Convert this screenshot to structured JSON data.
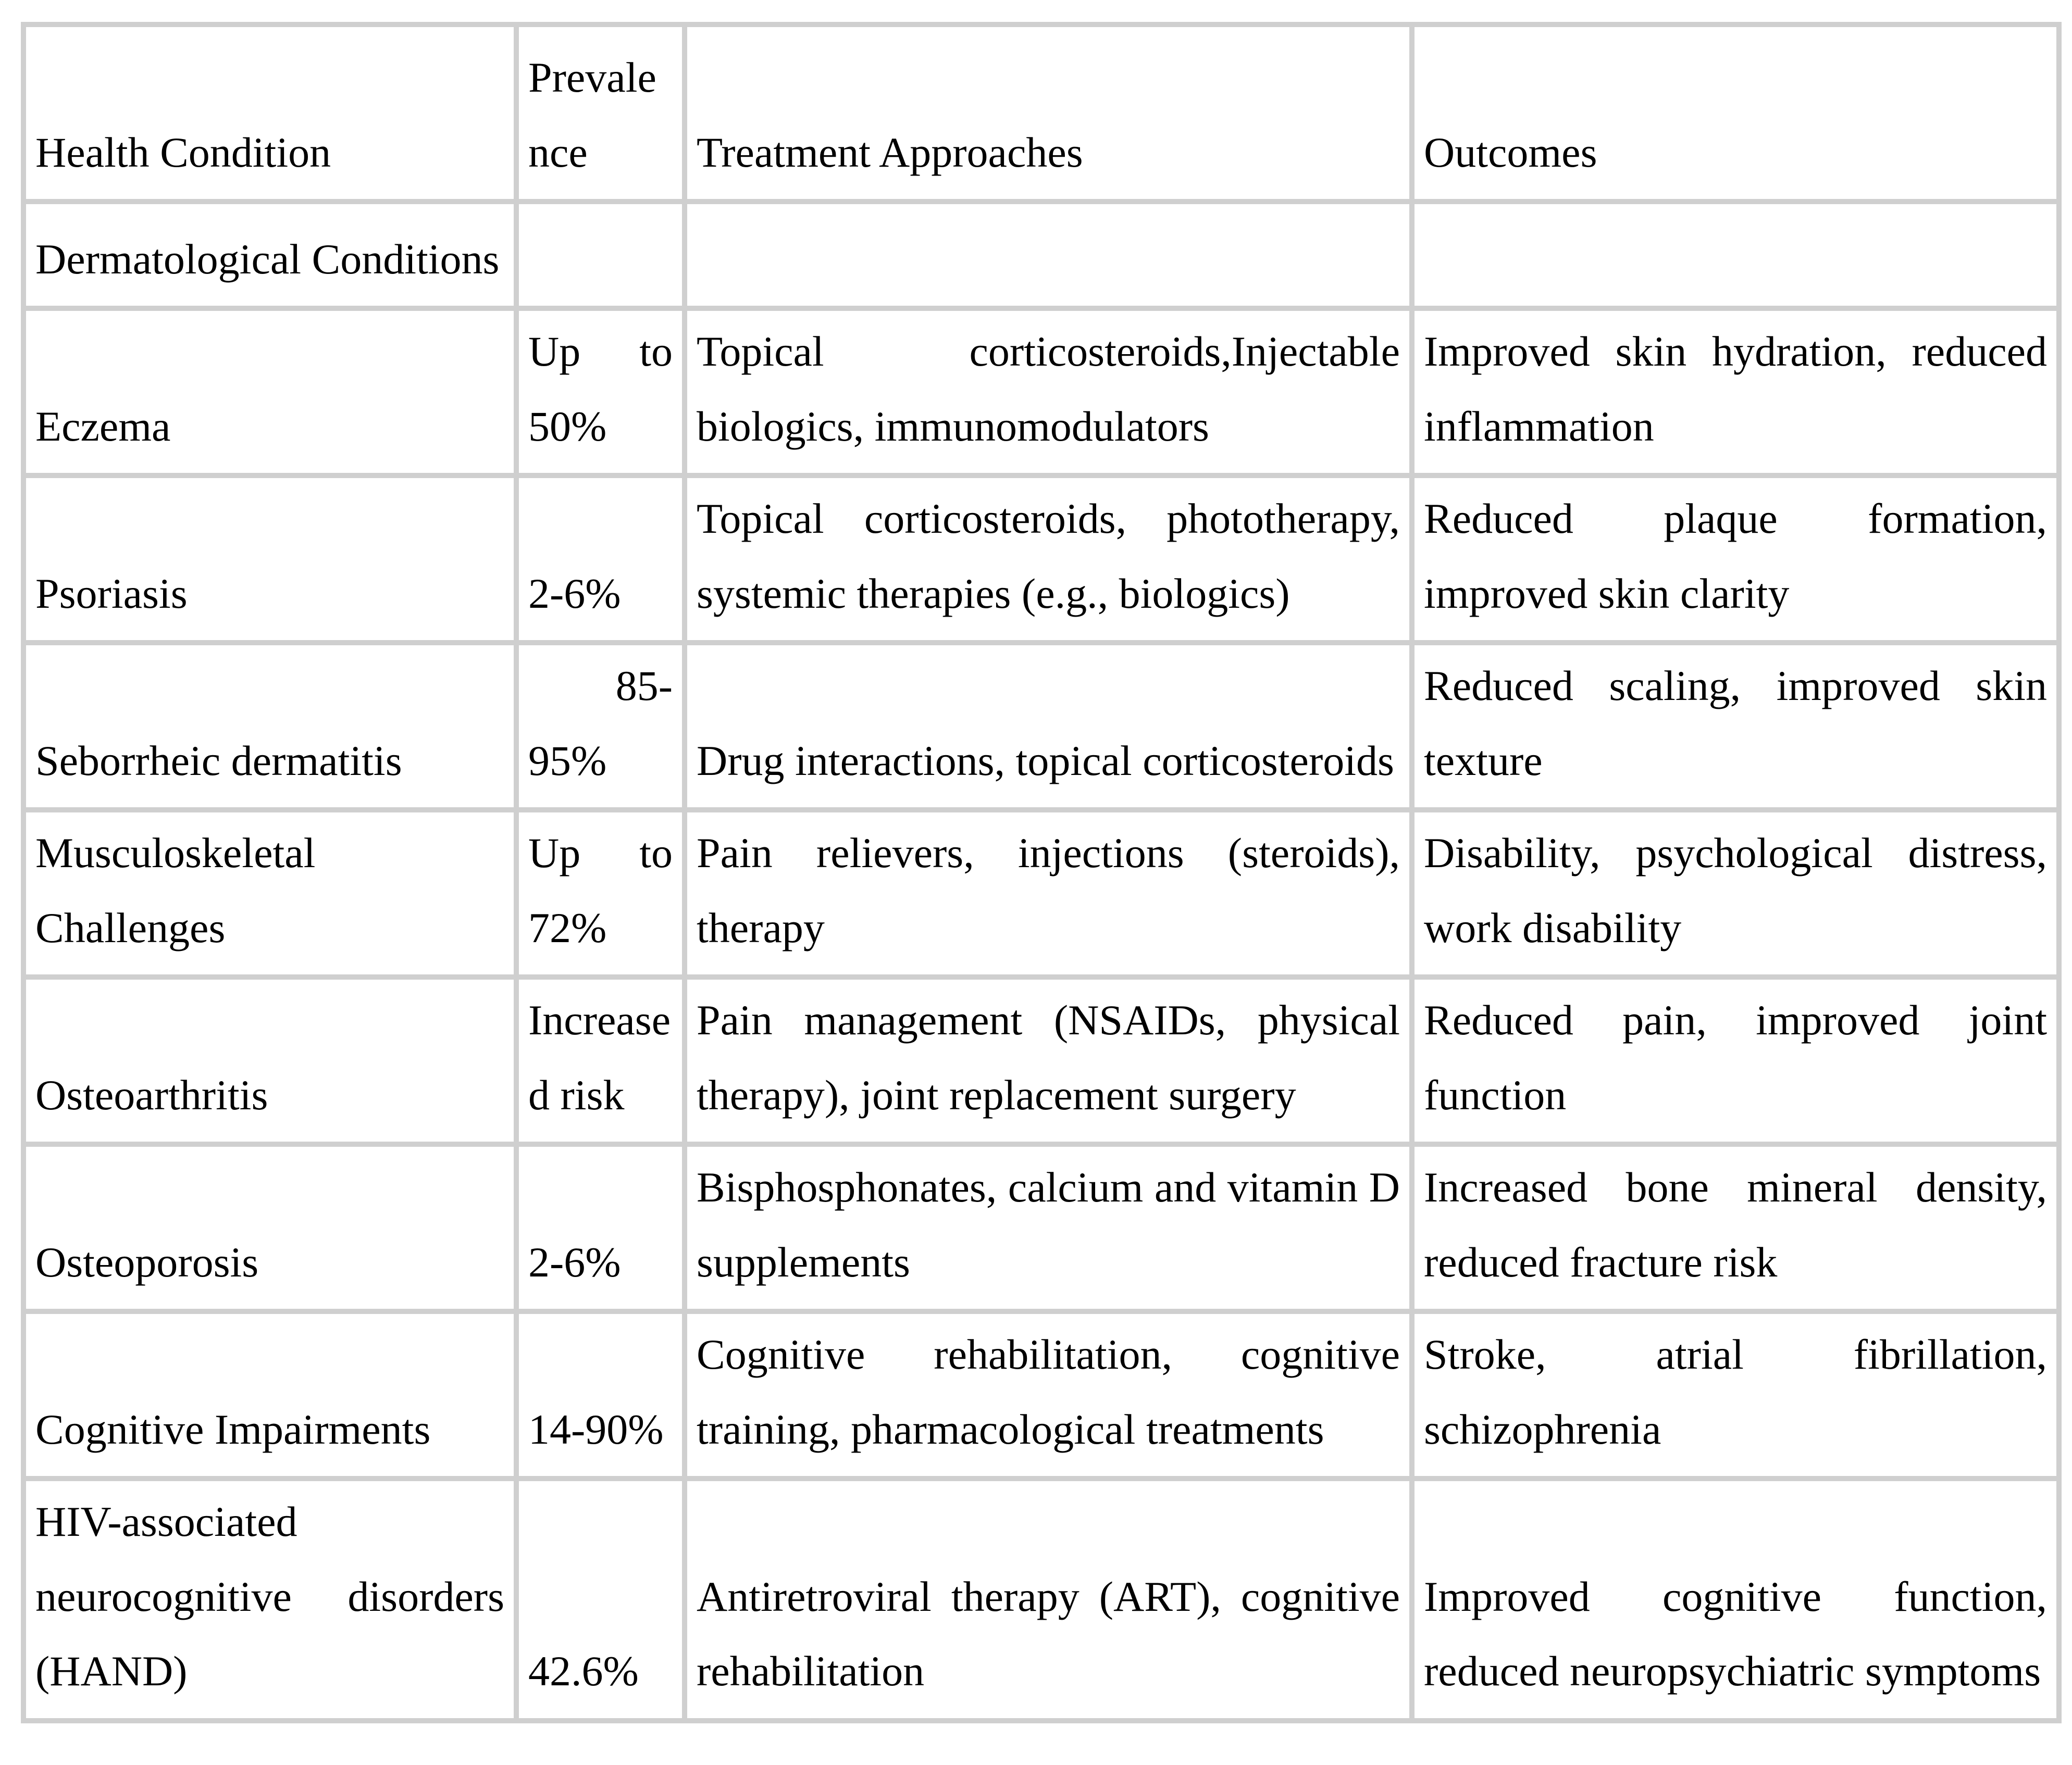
{
  "colors": {
    "background": "#ffffff",
    "text": "#000000",
    "grid_border": "#cfcfcf"
  },
  "table": {
    "headers": {
      "condition": "Health Condition",
      "prevalence": "Prevalence",
      "treatment": "Treatment Approaches",
      "outcomes": "Outcomes"
    },
    "rows": [
      {
        "condition": "Dermatological Conditions",
        "prevalence": "",
        "treatment": "",
        "outcomes": ""
      },
      {
        "condition": "Eczema",
        "prevalence": "Up to 50%",
        "treatment": "Topical corticosteroids,Injectable biologics, immunomodulators",
        "outcomes": "Improved skin hydration, reduced inflammation"
      },
      {
        "condition": "Psoriasis",
        "prevalence": "2-6%",
        "treatment": "Topical corticosteroids, phototherapy, systemic therapies (e.g., biologics)",
        "outcomes": "Reduced plaque formation, improved skin clarity"
      },
      {
        "condition": "Seborrheic dermatitis",
        "prevalence": " 85-95%",
        "treatment": "Drug interactions, topical corticosteroids",
        "outcomes": "Reduced scaling, improved skin texture"
      },
      {
        "condition": "Musculoskeletal Challenges",
        "prevalence": "Up to 72%",
        "treatment": "Pain relievers, injections (steroids), therapy",
        "outcomes": "Disability, psychological distress, work disability"
      },
      {
        "condition": "Osteoarthritis",
        "prevalence": "Increased risk",
        "treatment": "Pain management (NSAIDs, physical therapy), joint replacement surgery",
        "outcomes": "Reduced pain, improved joint function"
      },
      {
        "condition": "Osteoporosis",
        "prevalence": "2-6%",
        "treatment": "Bisphosphonates, calcium and vitamin D supplements",
        "outcomes": "Increased bone mineral density, reduced fracture risk"
      },
      {
        "condition": "Cognitive Impairments",
        "prevalence": "14-90%",
        "treatment": "Cognitive rehabilitation, cognitive training, pharmacological treatments",
        "outcomes": "Stroke, atrial fibrillation, schizophrenia"
      },
      {
        "condition": "HIV-associated neurocognitive disorders (HAND)",
        "prevalence": "42.6%",
        "treatment": "Antiretroviral therapy (ART), cognitive rehabilitation",
        "outcomes": "Improved cognitive function, reduced neuropsychiatric symptoms"
      }
    ]
  }
}
